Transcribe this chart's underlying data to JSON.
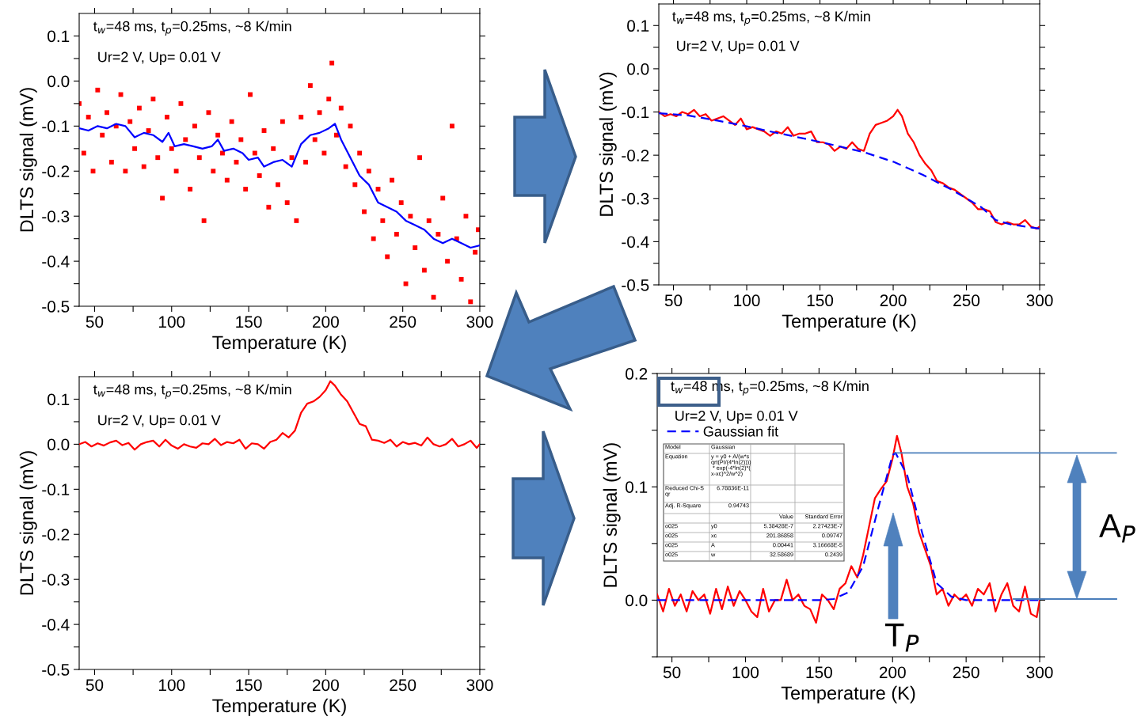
{
  "chart_data": [
    {
      "type": "scatter",
      "xlabel": "Temperature (K)",
      "ylabel": "DLTS signal (mV)",
      "xlim": [
        40,
        300
      ],
      "ylim": [
        -0.5,
        0.15
      ],
      "xticks": [
        50,
        {
          "value": 75,
          "label": null
        },
        100,
        {
          "value": 125,
          "label": null
        },
        150,
        {
          "value": 175,
          "label": null
        },
        200,
        {
          "value": 225,
          "label": null
        },
        250,
        {
          "value": 275,
          "label": null
        },
        300
      ],
      "yticks": [
        {
          "value": -0.5,
          "label": "-0.5"
        },
        {
          "value": -0.45,
          "label": null
        },
        {
          "value": -0.4,
          "label": "-0.4"
        },
        {
          "value": -0.35,
          "label": null
        },
        {
          "value": -0.3,
          "label": "-0.3"
        },
        {
          "value": -0.25,
          "label": null
        },
        {
          "value": -0.2,
          "label": "-0.2"
        },
        {
          "value": -0.15,
          "label": null
        },
        {
          "value": -0.1,
          "label": "-0.1"
        },
        {
          "value": -0.05,
          "label": null
        },
        {
          "value": 0.0,
          "label": "0.0"
        },
        {
          "value": 0.05,
          "label": null
        },
        {
          "value": 0.1,
          "label": "0.1"
        }
      ],
      "annotations": [
        "t$_{w}$=48 ms, t$_{p}$=0.25ms, ~8 K/min",
        "Ur=2 V, Up= 0.01 V"
      ],
      "series": [
        {
          "type": "scatter",
          "marker": "square",
          "color": "#ff0000",
          "x": [
            40,
            43,
            46,
            49,
            52,
            55,
            58,
            61,
            64,
            67,
            70,
            73,
            76,
            79,
            82,
            85,
            88,
            91,
            94,
            97,
            100,
            103,
            106,
            109,
            112,
            115,
            118,
            121,
            124,
            127,
            130,
            133,
            136,
            139,
            142,
            145,
            148,
            151,
            154,
            157,
            160,
            163,
            166,
            169,
            172,
            175,
            178,
            181,
            184,
            187,
            190,
            193,
            196,
            199,
            202,
            204,
            207,
            210,
            213,
            216,
            219,
            222,
            225,
            228,
            231,
            234,
            237,
            240,
            243,
            246,
            249,
            252,
            255,
            258,
            261,
            264,
            267,
            270,
            273,
            276,
            279,
            282,
            285,
            288,
            291,
            294,
            297,
            299
          ],
          "values": [
            -0.05,
            -0.16,
            -0.08,
            -0.2,
            -0.02,
            -0.12,
            -0.07,
            -0.18,
            -0.1,
            -0.03,
            -0.2,
            -0.09,
            -0.15,
            -0.06,
            -0.19,
            -0.11,
            -0.04,
            -0.17,
            -0.26,
            -0.08,
            -0.15,
            -0.2,
            -0.05,
            -0.13,
            -0.24,
            -0.1,
            -0.17,
            -0.31,
            -0.07,
            -0.2,
            -0.12,
            -0.16,
            -0.22,
            -0.09,
            -0.18,
            -0.13,
            -0.24,
            -0.03,
            -0.16,
            -0.21,
            -0.11,
            -0.28,
            -0.15,
            -0.23,
            -0.09,
            -0.27,
            -0.17,
            -0.31,
            -0.08,
            -0.18,
            -0.01,
            -0.13,
            -0.07,
            -0.16,
            -0.04,
            0.04,
            -0.12,
            -0.06,
            -0.19,
            -0.1,
            -0.23,
            -0.16,
            -0.29,
            -0.2,
            -0.35,
            -0.24,
            -0.31,
            -0.39,
            -0.22,
            -0.34,
            -0.27,
            -0.45,
            -0.3,
            -0.37,
            -0.17,
            -0.42,
            -0.31,
            -0.48,
            -0.34,
            -0.26,
            -0.4,
            -0.1,
            -0.35,
            -0.44,
            -0.3,
            -0.49,
            -0.38,
            -0.33
          ]
        },
        {
          "type": "line",
          "color": "#0000ff",
          "x": [
            40,
            46,
            52,
            58,
            64,
            70,
            76,
            82,
            88,
            94,
            98,
            102,
            108,
            114,
            120,
            126,
            130,
            134,
            140,
            146,
            150,
            156,
            160,
            166,
            172,
            178,
            184,
            190,
            196,
            202,
            206,
            210,
            216,
            222,
            228,
            234,
            240,
            246,
            252,
            258,
            264,
            270,
            276,
            282,
            288,
            294,
            300
          ],
          "values": [
            -0.105,
            -0.11,
            -0.1,
            -0.105,
            -0.095,
            -0.1,
            -0.125,
            -0.115,
            -0.12,
            -0.135,
            -0.115,
            -0.145,
            -0.14,
            -0.145,
            -0.15,
            -0.145,
            -0.13,
            -0.155,
            -0.15,
            -0.16,
            -0.175,
            -0.17,
            -0.19,
            -0.18,
            -0.175,
            -0.19,
            -0.14,
            -0.12,
            -0.115,
            -0.105,
            -0.095,
            -0.13,
            -0.17,
            -0.21,
            -0.23,
            -0.27,
            -0.28,
            -0.29,
            -0.31,
            -0.32,
            -0.33,
            -0.35,
            -0.36,
            -0.35,
            -0.36,
            -0.37,
            -0.365
          ]
        }
      ]
    },
    {
      "type": "line",
      "xlabel": "Temperature (K)",
      "ylabel": "DLTS signal (mV)",
      "xlim": [
        40,
        300
      ],
      "ylim": [
        -0.5,
        0.15
      ],
      "xticks": [
        50,
        {
          "value": 75,
          "label": null
        },
        100,
        {
          "value": 125,
          "label": null
        },
        150,
        {
          "value": 175,
          "label": null
        },
        200,
        {
          "value": 225,
          "label": null
        },
        250,
        {
          "value": 275,
          "label": null
        },
        300
      ],
      "yticks": [
        {
          "value": -0.5,
          "label": "-0.5"
        },
        {
          "value": -0.45,
          "label": null
        },
        {
          "value": -0.4,
          "label": "-0.4"
        },
        {
          "value": -0.35,
          "label": null
        },
        {
          "value": -0.3,
          "label": "-0.3"
        },
        {
          "value": -0.25,
          "label": null
        },
        {
          "value": -0.2,
          "label": "-0.2"
        },
        {
          "value": -0.15,
          "label": null
        },
        {
          "value": -0.1,
          "label": "-0.1"
        },
        {
          "value": -0.05,
          "label": null
        },
        {
          "value": 0.0,
          "label": "0.0"
        },
        {
          "value": 0.05,
          "label": null
        },
        {
          "value": 0.1,
          "label": "0.1"
        }
      ],
      "annotations": [
        "t$_{w}$=48 ms, t$_{p}$=0.25ms, ~8 K/min",
        "Ur=2 V, Up= 0.01 V"
      ],
      "series": [
        {
          "color": "#ff0000",
          "x": [
            40,
            44,
            48,
            52,
            56,
            60,
            64,
            68,
            72,
            76,
            80,
            84,
            88,
            92,
            96,
            100,
            104,
            108,
            112,
            116,
            120,
            124,
            128,
            132,
            136,
            140,
            144,
            148,
            152,
            156,
            160,
            164,
            168,
            172,
            176,
            180,
            184,
            188,
            192,
            196,
            200,
            203,
            206,
            210,
            214,
            218,
            222,
            226,
            230,
            234,
            238,
            242,
            246,
            250,
            254,
            258,
            262,
            266,
            270,
            274,
            278,
            282,
            286,
            290,
            294,
            298,
            300
          ],
          "values": [
            -0.1,
            -0.11,
            -0.105,
            -0.11,
            -0.1,
            -0.105,
            -0.095,
            -0.11,
            -0.105,
            -0.12,
            -0.115,
            -0.11,
            -0.12,
            -0.13,
            -0.115,
            -0.14,
            -0.135,
            -0.14,
            -0.145,
            -0.155,
            -0.145,
            -0.15,
            -0.135,
            -0.155,
            -0.15,
            -0.15,
            -0.145,
            -0.17,
            -0.17,
            -0.175,
            -0.19,
            -0.18,
            -0.185,
            -0.17,
            -0.185,
            -0.19,
            -0.15,
            -0.13,
            -0.125,
            -0.12,
            -0.11,
            -0.095,
            -0.11,
            -0.15,
            -0.17,
            -0.2,
            -0.22,
            -0.235,
            -0.26,
            -0.265,
            -0.275,
            -0.28,
            -0.29,
            -0.3,
            -0.31,
            -0.325,
            -0.325,
            -0.33,
            -0.355,
            -0.36,
            -0.355,
            -0.36,
            -0.36,
            -0.35,
            -0.365,
            -0.37,
            -0.365
          ]
        },
        {
          "color": "#0000ff",
          "line_style": "dashed",
          "x": [
            40,
            60,
            80,
            100,
            120,
            140,
            160,
            180,
            200,
            220,
            240,
            260,
            270,
            280,
            300
          ],
          "values": [
            -0.103,
            -0.108,
            -0.12,
            -0.133,
            -0.148,
            -0.162,
            -0.177,
            -0.193,
            -0.215,
            -0.245,
            -0.28,
            -0.32,
            -0.35,
            -0.36,
            -0.37
          ]
        }
      ]
    },
    {
      "type": "line",
      "xlabel": "Temperature (K)",
      "ylabel": "DLTS signal (mV)",
      "xlim": [
        40,
        300
      ],
      "ylim": [
        -0.5,
        0.15
      ],
      "xticks": [
        50,
        {
          "value": 75,
          "label": null
        },
        100,
        {
          "value": 125,
          "label": null
        },
        150,
        {
          "value": 175,
          "label": null
        },
        200,
        {
          "value": 225,
          "label": null
        },
        250,
        {
          "value": 275,
          "label": null
        },
        300
      ],
      "yticks": [
        {
          "value": -0.5,
          "label": "-0.5"
        },
        {
          "value": -0.45,
          "label": null
        },
        {
          "value": -0.4,
          "label": "-0.4"
        },
        {
          "value": -0.35,
          "label": null
        },
        {
          "value": -0.3,
          "label": "-0.3"
        },
        {
          "value": -0.25,
          "label": null
        },
        {
          "value": -0.2,
          "label": "-0.2"
        },
        {
          "value": -0.15,
          "label": null
        },
        {
          "value": -0.1,
          "label": "-0.1"
        },
        {
          "value": -0.05,
          "label": null
        },
        {
          "value": 0.0,
          "label": "0.0"
        },
        {
          "value": 0.05,
          "label": null
        },
        {
          "value": 0.1,
          "label": "0.1"
        }
      ],
      "annotations": [
        "t$_{w}$=48 ms, t$_{p}$=0.25ms, ~8 K/min",
        "Ur=2 V, Up= 0.01 V"
      ],
      "series": [
        {
          "color": "#ff0000",
          "x": [
            40,
            44,
            48,
            52,
            56,
            60,
            64,
            68,
            72,
            76,
            80,
            84,
            88,
            92,
            96,
            100,
            104,
            108,
            112,
            116,
            120,
            124,
            128,
            132,
            136,
            140,
            144,
            148,
            152,
            156,
            160,
            164,
            168,
            172,
            176,
            180,
            184,
            188,
            192,
            196,
            200,
            203,
            206,
            210,
            214,
            218,
            222,
            226,
            230,
            234,
            238,
            242,
            246,
            250,
            254,
            258,
            262,
            266,
            270,
            274,
            278,
            282,
            286,
            290,
            294,
            298,
            300
          ],
          "values": [
            0.0,
            0.005,
            -0.005,
            0.002,
            -0.003,
            0.004,
            0.008,
            -0.002,
            0.003,
            -0.012,
            0.0,
            0.005,
            0.008,
            -0.005,
            0.01,
            -0.003,
            -0.01,
            0.0,
            -0.005,
            -0.008,
            0.002,
            0.0,
            0.012,
            -0.002,
            0.005,
            0.002,
            0.01,
            -0.01,
            0.002,
            0.0,
            -0.01,
            0.005,
            0.01,
            0.025,
            0.015,
            0.03,
            0.07,
            0.09,
            0.095,
            0.105,
            0.12,
            0.14,
            0.13,
            0.11,
            0.095,
            0.07,
            0.045,
            0.04,
            0.01,
            0.008,
            0.003,
            0.01,
            -0.005,
            0.005,
            0.0,
            0.003,
            -0.003,
            0.015,
            0.0,
            -0.005,
            0.0,
            0.012,
            -0.005,
            0.0,
            0.008,
            -0.008,
            0.0
          ]
        }
      ]
    },
    {
      "type": "line",
      "xlabel": "Temperature (K)",
      "ylabel": "DLTS signal (mV)",
      "xlim": [
        40,
        300
      ],
      "ylim": [
        -0.05,
        0.2
      ],
      "legend": "top left",
      "xticks": [
        50,
        {
          "value": 75,
          "label": null
        },
        100,
        {
          "value": 125,
          "label": null
        },
        150,
        {
          "value": 175,
          "label": null
        },
        200,
        {
          "value": 225,
          "label": null
        },
        250,
        {
          "value": 275,
          "label": null
        },
        300
      ],
      "yticks": [
        {
          "value": -0.05,
          "label": null
        },
        {
          "value": 0.0,
          "label": "0.0"
        },
        {
          "value": 0.05,
          "label": null
        },
        {
          "value": 0.1,
          "label": "0.1"
        },
        {
          "value": 0.15,
          "label": null
        },
        {
          "value": 0.2,
          "label": "0.2"
        }
      ],
      "ref_lines": [
        {
          "axis": "y",
          "value": 0.13,
          "color": "#4a7ebb"
        }
      ],
      "annotations": [
        "t$_{w}$=48 ms, t$_{p}$=0.25ms, ~8 K/min",
        "Ur=2 V, Up= 0.01 V",
        "A$_{P}$",
        "T$_{P}$",
        "Model",
        "Gaussian",
        "Equation",
        "y = y0 + A/(w*s\nqrt(PI/(4*ln(2))))\n * exp(-4*ln(2)*(\nx-xc)^2/w^2)",
        "Reduced Chi-S\nqr",
        "6.78836E-11",
        "Adj. R-Square",
        "0.94743",
        "Value",
        "Standard Error",
        "o025",
        "y0",
        "5.38428E-7",
        "2.27423E-7",
        "o025",
        "xc",
        "201.86858",
        "0.09747",
        "o025",
        "A",
        "0.00441",
        "3.16668E-5",
        "o025",
        "w",
        "32.58689",
        "0.2439"
      ],
      "series": [
        {
          "color": "#ff0000",
          "x": [
            40,
            44,
            48,
            52,
            56,
            60,
            64,
            68,
            72,
            76,
            80,
            84,
            88,
            92,
            96,
            100,
            104,
            108,
            112,
            116,
            120,
            124,
            128,
            132,
            136,
            140,
            144,
            148,
            152,
            156,
            160,
            164,
            168,
            172,
            176,
            180,
            184,
            188,
            192,
            196,
            200,
            203,
            206,
            210,
            214,
            218,
            222,
            226,
            230,
            234,
            238,
            242,
            246,
            250,
            254,
            258,
            262,
            266,
            270,
            274,
            278,
            282,
            286,
            290,
            294,
            298,
            300
          ],
          "values": [
            0.005,
            -0.01,
            0.01,
            -0.005,
            0.005,
            -0.01,
            0.008,
            0.0,
            0.005,
            -0.012,
            0.01,
            -0.008,
            0.012,
            -0.005,
            0.008,
            0.0,
            -0.01,
            -0.015,
            0.01,
            -0.01,
            0.0,
            0.0,
            0.018,
            0.0,
            0.005,
            -0.005,
            -0.008,
            -0.02,
            0.005,
            0.0,
            -0.008,
            0.01,
            0.015,
            0.03,
            0.02,
            0.04,
            0.065,
            0.09,
            0.098,
            0.105,
            0.125,
            0.145,
            0.13,
            0.1,
            0.085,
            0.06,
            0.045,
            0.03,
            0.005,
            0.01,
            -0.005,
            0.005,
            0.0,
            0.005,
            -0.005,
            0.01,
            0.005,
            0.015,
            -0.01,
            0.005,
            0.015,
            -0.005,
            -0.01,
            0.012,
            -0.012,
            -0.015,
            0.0
          ]
        },
        {
          "name": "Gaussian fit",
          "color": "#0000ff",
          "line_style": "dashed",
          "x": [
            40,
            150,
            160,
            170,
            180,
            190,
            200,
            202,
            210,
            220,
            230,
            240,
            250,
            300
          ],
          "values": [
            0.0,
            0.0,
            0.001,
            0.007,
            0.03,
            0.08,
            0.128,
            0.13,
            0.11,
            0.06,
            0.015,
            0.003,
            0.0,
            0.0
          ]
        }
      ]
    }
  ]
}
